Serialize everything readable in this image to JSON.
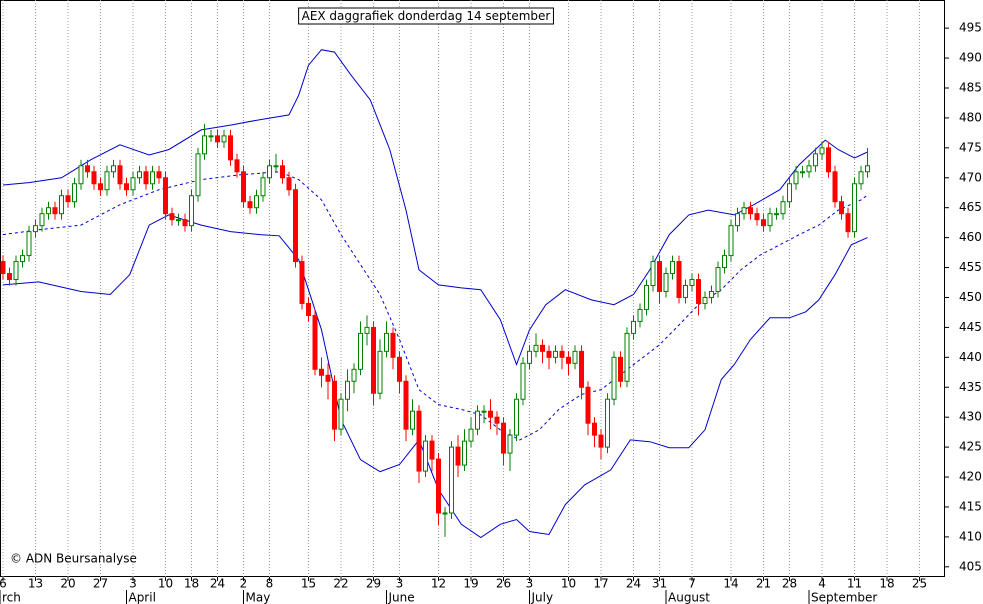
{
  "chart_data": {
    "type": "candlestick",
    "title": "AEX daggrafiek donderdag 14 september",
    "annotation": "© ADN Beursanalyse",
    "up_color": "#008000",
    "down_color": "#ff0000",
    "band_color": "#0000cc",
    "ylim": [
      403.3,
      499.7
    ],
    "yticks": [
      405,
      410,
      415,
      420,
      425,
      430,
      435,
      440,
      445,
      450,
      455,
      460,
      465,
      470,
      475,
      480,
      485,
      490,
      495
    ],
    "xlim": [
      -0.46,
      144.92
    ],
    "xticks": [
      {
        "value": 0,
        "label": "6"
      },
      {
        "value": 5,
        "label": "13"
      },
      {
        "value": 10,
        "label": "20"
      },
      {
        "value": 15,
        "label": "27"
      },
      {
        "value": 20,
        "label": "3"
      },
      {
        "value": 25,
        "label": "10"
      },
      {
        "value": 29,
        "label": "18"
      },
      {
        "value": 33,
        "label": "24"
      },
      {
        "value": 37,
        "label": "2"
      },
      {
        "value": 41,
        "label": "8"
      },
      {
        "value": 47,
        "label": "15"
      },
      {
        "value": 52,
        "label": "22"
      },
      {
        "value": 57,
        "label": "29"
      },
      {
        "value": 61,
        "label": "3"
      },
      {
        "value": 67,
        "label": "12"
      },
      {
        "value": 72,
        "label": "19"
      },
      {
        "value": 77,
        "label": "26"
      },
      {
        "value": 81,
        "label": "3"
      },
      {
        "value": 87,
        "label": "10"
      },
      {
        "value": 92,
        "label": "17"
      },
      {
        "value": 97,
        "label": "24"
      },
      {
        "value": 101,
        "label": "31"
      },
      {
        "value": 106,
        "label": "7"
      },
      {
        "value": 112,
        "label": "14"
      },
      {
        "value": 117,
        "label": "21"
      },
      {
        "value": 121,
        "label": "28"
      },
      {
        "value": 126,
        "label": "4"
      },
      {
        "value": 131,
        "label": "11"
      },
      {
        "value": 136,
        "label": "18"
      },
      {
        "value": 141,
        "label": "25"
      }
    ],
    "month_ticks": [
      {
        "value": -0.46,
        "label": "rch"
      },
      {
        "value": 19,
        "label": "April"
      },
      {
        "value": 37,
        "label": "May"
      },
      {
        "value": 59,
        "label": "June"
      },
      {
        "value": 81,
        "label": "July"
      },
      {
        "value": 102,
        "label": "August"
      },
      {
        "value": 124,
        "label": "September"
      }
    ],
    "x": [
      0,
      1,
      2,
      3,
      4,
      5,
      6,
      7,
      8,
      9,
      10,
      11,
      12,
      13,
      14,
      15,
      16,
      17,
      18,
      19,
      20,
      21,
      22,
      23,
      24,
      25,
      26,
      27,
      28,
      29,
      30,
      31,
      32,
      33,
      34,
      35,
      36,
      37,
      38,
      39,
      40,
      41,
      42,
      43,
      44,
      45,
      46,
      47,
      48,
      49,
      50,
      51,
      52,
      53,
      54,
      55,
      56,
      57,
      58,
      59,
      60,
      61,
      62,
      63,
      64,
      65,
      66,
      67,
      68,
      69,
      70,
      71,
      72,
      73,
      74,
      75,
      76,
      77,
      78,
      79,
      80,
      81,
      82,
      83,
      84,
      85,
      86,
      87,
      88,
      89,
      90,
      91,
      92,
      93,
      94,
      95,
      96,
      97,
      98,
      99,
      100,
      101,
      102,
      103,
      104,
      105,
      106,
      107,
      108,
      109,
      110,
      111,
      112,
      113,
      114,
      115,
      116,
      117,
      118,
      119,
      120,
      121,
      122,
      123,
      124,
      125,
      126,
      127,
      128,
      129,
      130,
      131,
      132,
      133
    ],
    "open": [
      456,
      454,
      453,
      456,
      457,
      461,
      462,
      464,
      465,
      464,
      467,
      466,
      469,
      472,
      471,
      469,
      468,
      471,
      472,
      469,
      468,
      470,
      471,
      469,
      471,
      470,
      464,
      463,
      463,
      462,
      467,
      474,
      477,
      477,
      476,
      477,
      473,
      471,
      466,
      465,
      467,
      470,
      472,
      472,
      470,
      468,
      456,
      449,
      447,
      438,
      437,
      436,
      428,
      433,
      436,
      438,
      444,
      445,
      434,
      441,
      444,
      440,
      436,
      428,
      431,
      421,
      426,
      423,
      414,
      414,
      425,
      422,
      426,
      428,
      431,
      431,
      430,
      429,
      424,
      427,
      433,
      439,
      441,
      442,
      441,
      440,
      441,
      440,
      439,
      441,
      435,
      429,
      427,
      425,
      433,
      440,
      436,
      444,
      446,
      448,
      452,
      456,
      451,
      454,
      456,
      450,
      452,
      453,
      449,
      450,
      451,
      455,
      457,
      462,
      464,
      465,
      464,
      463,
      462,
      464,
      464,
      466,
      469,
      471,
      471,
      472,
      474,
      475,
      471,
      466,
      464,
      461,
      469,
      471
    ],
    "high": [
      457,
      455,
      457,
      458,
      462,
      463,
      465,
      466,
      466,
      468,
      468,
      470,
      473,
      473,
      472,
      470,
      472,
      473,
      473,
      470,
      471,
      472,
      472,
      472,
      472,
      471,
      465,
      464,
      464,
      468,
      475,
      479,
      478,
      478,
      478,
      478,
      474,
      472,
      467,
      468,
      471,
      473,
      474,
      473,
      471,
      469,
      457,
      450,
      448,
      440,
      439,
      437,
      434,
      438,
      439,
      446,
      447,
      446,
      443,
      446,
      445,
      441,
      437,
      433,
      432,
      427,
      427,
      424,
      415,
      426,
      427,
      428,
      430,
      432,
      432,
      433,
      431,
      430,
      428,
      434,
      440,
      442,
      444,
      443,
      442,
      442,
      442,
      441,
      442,
      442,
      436,
      430,
      428,
      434,
      441,
      441,
      445,
      447,
      449,
      453,
      457,
      457,
      455,
      457,
      457,
      453,
      454,
      454,
      451,
      452,
      456,
      458,
      463,
      465,
      466,
      466,
      465,
      464,
      465,
      465,
      467,
      470,
      472,
      472,
      473,
      475,
      476,
      476,
      472,
      467,
      465,
      470,
      472,
      475
    ],
    "low": [
      453,
      452,
      452,
      455,
      456,
      460,
      461,
      463,
      463,
      463,
      465,
      465,
      468,
      470,
      468,
      467,
      467,
      470,
      468,
      467,
      467,
      469,
      468,
      468,
      469,
      463,
      462,
      462,
      461,
      461,
      466,
      473,
      476,
      475,
      475,
      472,
      470,
      465,
      464,
      464,
      466,
      469,
      471,
      469,
      467,
      455,
      448,
      446,
      437,
      435,
      433,
      426,
      427,
      431,
      434,
      437,
      442,
      432,
      433,
      440,
      438,
      434,
      426,
      427,
      419,
      420,
      421,
      412,
      410,
      413,
      420,
      421,
      425,
      427,
      429,
      428,
      427,
      422,
      421,
      426,
      432,
      438,
      440,
      439,
      438,
      439,
      438,
      437,
      438,
      433,
      427,
      425,
      423,
      424,
      432,
      435,
      435,
      443,
      445,
      447,
      451,
      449,
      450,
      453,
      449,
      449,
      451,
      447,
      448,
      449,
      450,
      454,
      456,
      461,
      463,
      463,
      462,
      461,
      461,
      463,
      463,
      465,
      468,
      470,
      470,
      471,
      473,
      470,
      465,
      463,
      460,
      460,
      468,
      470
    ],
    "close": [
      454,
      453,
      456,
      457,
      461,
      462,
      464,
      465,
      464,
      467,
      466,
      469,
      472,
      471,
      469,
      468,
      471,
      472,
      469,
      468,
      470,
      471,
      469,
      471,
      470,
      464,
      463,
      463,
      462,
      467,
      474,
      477,
      477,
      476,
      477,
      473,
      471,
      466,
      465,
      467,
      470,
      472,
      472,
      470,
      468,
      456,
      449,
      447,
      438,
      437,
      436,
      428,
      433,
      436,
      438,
      444,
      445,
      434,
      441,
      444,
      440,
      436,
      428,
      431,
      421,
      426,
      423,
      414,
      414,
      425,
      422,
      426,
      428,
      431,
      431,
      430,
      429,
      424,
      427,
      433,
      439,
      441,
      442,
      441,
      440,
      441,
      440,
      439,
      441,
      435,
      429,
      427,
      425,
      433,
      440,
      436,
      444,
      446,
      448,
      452,
      456,
      451,
      454,
      456,
      450,
      452,
      453,
      449,
      450,
      451,
      455,
      457,
      462,
      464,
      465,
      464,
      463,
      462,
      464,
      464,
      466,
      469,
      471,
      471,
      472,
      474,
      475,
      471,
      466,
      464,
      461,
      469,
      471,
      472
    ],
    "bands": [
      {
        "dashed": false,
        "x": [
          0,
          4,
          9,
          13.5,
          18,
          22.5,
          25.5,
          30.5,
          35,
          39.5,
          44,
          45.5,
          47,
          49,
          51,
          53.5,
          56.5,
          59.5,
          62,
          64,
          67,
          70.5,
          73.5,
          76.5,
          79,
          81,
          83.5,
          86.5,
          90.5,
          94,
          97,
          99.5,
          102.5,
          105.5,
          108.5,
          112.5,
          115.5,
          119.5,
          122.5,
          126.5,
          128.5,
          131,
          133
        ],
        "values": [
          468.8,
          469.2,
          470,
          473,
          475.5,
          473.8,
          474.7,
          478,
          478.8,
          479.7,
          480.5,
          483.8,
          488.8,
          491.4,
          491,
          487.2,
          483,
          474.7,
          464.6,
          454.6,
          452.1,
          451.6,
          451.3,
          446.3,
          438.8,
          444.6,
          448.8,
          451.3,
          449.6,
          448.8,
          450.5,
          454.6,
          460.5,
          463.8,
          464.6,
          463.8,
          465.5,
          468,
          472.2,
          476.3,
          474.7,
          473.3,
          474.3
        ]
      },
      {
        "dashed": true,
        "x": [
          0,
          5.5,
          12,
          18,
          24,
          30.5,
          36.5,
          42.5,
          45.5,
          49,
          52,
          55,
          58,
          61,
          64,
          67,
          70.5,
          73.5,
          76.5,
          79.5,
          82.5,
          85.5,
          89,
          92,
          95,
          98,
          101,
          104,
          107,
          110.5,
          113.5,
          116.5,
          119.5,
          122.5,
          125.5,
          128.5,
          132,
          133
        ],
        "values": [
          460.5,
          461.3,
          462.1,
          465.5,
          468,
          469.7,
          470.5,
          471,
          469.7,
          466.3,
          460.5,
          455.5,
          450.5,
          443,
          434.6,
          432.1,
          431.3,
          430.4,
          427.9,
          426.2,
          427.9,
          431.3,
          433.8,
          434.6,
          437.1,
          439.6,
          442.1,
          445.4,
          448.8,
          451.3,
          454.6,
          457.1,
          458.8,
          460.5,
          462.1,
          464.6,
          466.3,
          467.1
        ]
      },
      {
        "dashed": false,
        "x": [
          0,
          5.5,
          12,
          16.5,
          19.5,
          22.5,
          25.5,
          30.5,
          35,
          39.5,
          42.5,
          45.5,
          49,
          52,
          55,
          58,
          61,
          64,
          67,
          70.5,
          73.5,
          76.5,
          79,
          81,
          84,
          86.5,
          89.5,
          93.5,
          96.5,
          99.5,
          102.5,
          105.5,
          108,
          110.5,
          112.5,
          115,
          118,
          121,
          123.5,
          125.5,
          128,
          130.5,
          133
        ],
        "values": [
          452.1,
          452.6,
          451,
          450.5,
          453.8,
          462.1,
          463.8,
          462.1,
          461,
          460.5,
          460.3,
          456.3,
          444.6,
          429.6,
          422.9,
          420.9,
          422.1,
          426.2,
          417.9,
          412.1,
          409.9,
          412.1,
          412.9,
          410.9,
          410.4,
          415.4,
          418.7,
          421.2,
          426.2,
          425.9,
          424.9,
          424.9,
          427.9,
          436.3,
          438.8,
          443,
          446.6,
          446.6,
          447.6,
          449.6,
          453.8,
          458.8,
          460
        ]
      }
    ]
  }
}
